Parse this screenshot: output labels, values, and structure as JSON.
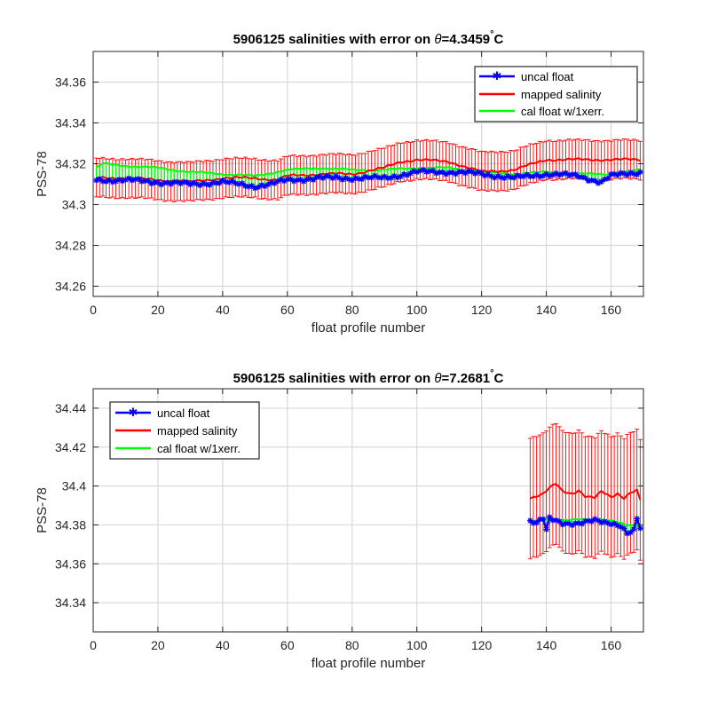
{
  "chart_data": [
    {
      "type": "line",
      "title_prefix": "5906125 salinities with error on ",
      "title_theta": "θ",
      "title_value": "=4.3459",
      "title_degree": "°",
      "title_unit": "C",
      "xlabel": "float profile number",
      "ylabel": "PSS-78",
      "xlim": [
        0,
        170
      ],
      "ylim": [
        34.255,
        34.375
      ],
      "xticks": [
        0,
        20,
        40,
        60,
        80,
        100,
        120,
        140,
        160
      ],
      "yticks": [
        34.26,
        34.28,
        34.3,
        34.32,
        34.34,
        34.36
      ],
      "ytick_labels": [
        "34.26",
        "34.28",
        "34.3",
        "34.32",
        "34.34",
        "34.36"
      ],
      "grid": true,
      "legend_position": "top-right",
      "profile_start": 1,
      "profile_end": 169,
      "series": [
        {
          "name": "uncal float",
          "color": "#0000ff",
          "marker": "star",
          "anchors_x": [
            1,
            10,
            20,
            30,
            40,
            50,
            55,
            60,
            70,
            80,
            90,
            100,
            110,
            120,
            130,
            140,
            150,
            157,
            160,
            169
          ],
          "anchors_y": [
            34.312,
            34.312,
            34.311,
            34.31,
            34.311,
            34.309,
            34.31,
            34.312,
            34.313,
            34.313,
            34.313,
            34.316,
            34.316,
            34.315,
            34.313,
            34.315,
            34.314,
            34.311,
            34.314,
            34.316
          ]
        },
        {
          "name": "mapped salinity",
          "color": "#ff0000",
          "error_half_width": 0.0095,
          "anchors_x": [
            1,
            10,
            20,
            30,
            40,
            50,
            57,
            60,
            70,
            80,
            90,
            95,
            100,
            110,
            120,
            130,
            140,
            150,
            160,
            169
          ],
          "anchors_y": [
            34.313,
            34.313,
            34.312,
            34.311,
            34.313,
            34.313,
            34.312,
            34.314,
            34.315,
            34.315,
            34.318,
            34.321,
            34.322,
            34.321,
            34.316,
            34.317,
            34.322,
            34.322,
            34.322,
            34.322
          ]
        },
        {
          "name": "cal float w/1xerr.",
          "color": "#00ff00",
          "anchors_x": [
            1,
            3,
            10,
            20,
            30,
            40,
            50,
            60,
            70,
            80,
            90,
            100,
            110,
            120,
            130,
            140,
            150,
            160,
            169
          ],
          "anchors_y": [
            34.318,
            34.32,
            34.319,
            34.318,
            34.316,
            34.315,
            34.314,
            34.317,
            34.318,
            34.317,
            34.317,
            34.318,
            34.318,
            34.316,
            34.315,
            34.316,
            34.315,
            34.315,
            34.317
          ]
        }
      ]
    },
    {
      "type": "line",
      "title_prefix": "5906125 salinities with error on ",
      "title_theta": "θ",
      "title_value": "=7.2681",
      "title_degree": "°",
      "title_unit": "C",
      "xlabel": "float profile number",
      "ylabel": "PSS-78",
      "xlim": [
        0,
        170
      ],
      "ylim": [
        34.325,
        34.45
      ],
      "xticks": [
        0,
        20,
        40,
        60,
        80,
        100,
        120,
        140,
        160
      ],
      "yticks": [
        34.34,
        34.36,
        34.38,
        34.4,
        34.42,
        34.44
      ],
      "ytick_labels": [
        "34.34",
        "34.36",
        "34.38",
        "34.4",
        "34.42",
        "34.44"
      ],
      "grid": true,
      "legend_position": "top-left",
      "profile_start": 135,
      "profile_end": 169,
      "series": [
        {
          "name": "uncal float",
          "color": "#0000ff",
          "marker": "star",
          "anchors_x": [
            135,
            137,
            139,
            140,
            141,
            145,
            150,
            155,
            158,
            160,
            163,
            165,
            167,
            168,
            169
          ],
          "anchors_y": [
            34.382,
            34.381,
            34.383,
            34.377,
            34.383,
            34.381,
            34.381,
            34.382,
            34.381,
            34.381,
            34.38,
            34.376,
            34.377,
            34.383,
            34.378
          ]
        },
        {
          "name": "mapped salinity",
          "color": "#ff0000",
          "error_half_width": 0.031,
          "anchors_x": [
            135,
            137,
            139,
            141,
            143,
            145,
            148,
            150,
            152,
            155,
            157,
            160,
            162,
            164,
            166,
            168,
            169
          ],
          "anchors_y": [
            34.394,
            34.395,
            34.396,
            34.399,
            34.401,
            34.397,
            34.396,
            34.398,
            34.395,
            34.394,
            34.397,
            34.394,
            34.396,
            34.394,
            34.397,
            34.398,
            34.393
          ]
        },
        {
          "name": "cal float w/1xerr.",
          "color": "#00ff00",
          "anchors_x": [
            135,
            140,
            145,
            150,
            155,
            160,
            165,
            169
          ],
          "anchors_y": [
            34.382,
            34.383,
            34.382,
            34.383,
            34.383,
            34.382,
            34.38,
            34.38
          ]
        }
      ]
    }
  ]
}
